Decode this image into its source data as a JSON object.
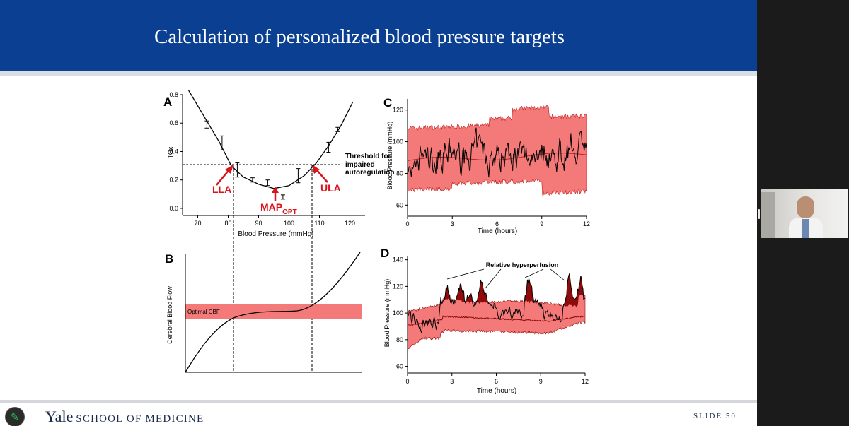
{
  "slide": {
    "title": "Calculation of personalized blood pressure targets",
    "footer_brand_main": "Yale",
    "footer_brand_rest": "SCHOOL OF MEDICINE",
    "slide_number": "SLIDE 50"
  },
  "toolbar": {
    "annotate_icon": "pencil-icon"
  },
  "camera": {
    "name": ""
  },
  "colors": {
    "header": "#0a3f91",
    "band": "#f47a7a",
    "trace": "#000000",
    "arrow": "#d9141b"
  },
  "panels": {
    "A": {
      "letter": "A",
      "xlabel": "Blood Pressure (mmHg)",
      "ylabel": "TOx",
      "threshold_label": [
        "Threshold for",
        "impaired",
        "autoregulation"
      ],
      "lla": "LLA",
      "ula": "ULA",
      "map_main": "MAP",
      "map_sub": "OPT"
    },
    "B": {
      "letter": "B",
      "ylabel": "Cerebral Blood Flow",
      "band_label": "Optimal CBF"
    },
    "C": {
      "letter": "C",
      "xlabel": "Time (hours)",
      "ylabel": "Blood Pressure (mmHg)"
    },
    "D": {
      "letter": "D",
      "xlabel": "Time (hours)",
      "ylabel": "Blood Pressure (mmHg)",
      "annotation": "Relative hyperperfusion"
    }
  },
  "chart_data": [
    {
      "id": "A",
      "type": "scatter",
      "title": "",
      "xlabel": "Blood Pressure (mmHg)",
      "ylabel": "TOx",
      "xlim": [
        65,
        125
      ],
      "ylim": [
        -0.05,
        0.8
      ],
      "xticks": [
        70,
        80,
        90,
        100,
        110,
        120
      ],
      "yticks": [
        0.0,
        0.2,
        0.4,
        0.6,
        0.8
      ],
      "points": [
        {
          "x": 73,
          "y": 0.59,
          "err": 0.025
        },
        {
          "x": 78,
          "y": 0.46,
          "err": 0.05
        },
        {
          "x": 83,
          "y": 0.27,
          "err": 0.05
        },
        {
          "x": 88,
          "y": 0.2,
          "err": 0.015
        },
        {
          "x": 93,
          "y": 0.18,
          "err": 0.02
        },
        {
          "x": 98,
          "y": 0.08,
          "err": 0.015
        },
        {
          "x": 103,
          "y": 0.23,
          "err": 0.05
        },
        {
          "x": 108,
          "y": 0.28,
          "err": 0.025
        },
        {
          "x": 113,
          "y": 0.43,
          "err": 0.035
        },
        {
          "x": 116,
          "y": 0.555,
          "err": 0.015
        }
      ],
      "fit_curve": [
        {
          "x": 67,
          "y": 0.83
        },
        {
          "x": 72,
          "y": 0.65
        },
        {
          "x": 77,
          "y": 0.47
        },
        {
          "x": 81,
          "y": 0.3
        },
        {
          "x": 85,
          "y": 0.22
        },
        {
          "x": 90,
          "y": 0.17
        },
        {
          "x": 95,
          "y": 0.14
        },
        {
          "x": 100,
          "y": 0.16
        },
        {
          "x": 105,
          "y": 0.23
        },
        {
          "x": 109,
          "y": 0.32
        },
        {
          "x": 113,
          "y": 0.44
        },
        {
          "x": 117,
          "y": 0.58
        },
        {
          "x": 121,
          "y": 0.75
        }
      ],
      "threshold": 0.3,
      "lla_x": 81,
      "ula_x": 108,
      "map_opt_x": 95
    },
    {
      "id": "B",
      "type": "line",
      "title": "",
      "ylabel": "Cerebral Blood Flow",
      "band_label": "Optimal CBF"
    },
    {
      "id": "C",
      "type": "area",
      "title": "",
      "xlabel": "Time (hours)",
      "ylabel": "Blood Pressure (mmHg)",
      "xlim": [
        0,
        12
      ],
      "ylim": [
        53,
        127
      ],
      "xticks": [
        0,
        3,
        6,
        9,
        12
      ],
      "yticks": [
        60,
        80,
        100,
        120
      ],
      "grid": false
    },
    {
      "id": "D",
      "type": "area",
      "title": "",
      "xlabel": "Time (hours)",
      "ylabel": "Blood Pressure (mmHg)",
      "xlim": [
        0,
        12
      ],
      "ylim": [
        55,
        143
      ],
      "xticks": [
        0,
        3,
        6,
        9,
        12
      ],
      "yticks": [
        60,
        80,
        100,
        120,
        140
      ],
      "grid": false,
      "annotation": "Relative hyperperfusion"
    }
  ]
}
